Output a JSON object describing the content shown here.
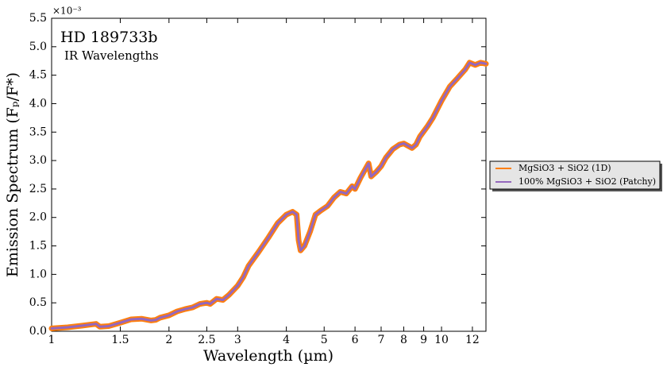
{
  "chart_data": {
    "type": "line",
    "title": "HD 189733b",
    "subtitle": "IR Wavelengths",
    "x_label": "Wavelength (µm)",
    "y_label": "Emission Spectrum (Fₚ/F*)",
    "y_offset_label": "×10⁻³",
    "xscale": "log",
    "xlim": [
      1,
      13
    ],
    "xticks": [
      1,
      1.5,
      2,
      2.5,
      3,
      4,
      5,
      6,
      7,
      8,
      9,
      10,
      12
    ],
    "ylim": [
      0,
      5.5
    ],
    "yticks": [
      {
        "value": 0,
        "label": "0.0"
      },
      0.5,
      {
        "value": 1,
        "label": "1.0"
      },
      1.5,
      {
        "value": 2,
        "label": "2.0"
      },
      2.5,
      {
        "value": 3,
        "label": "3.0"
      },
      3.5,
      {
        "value": 4,
        "label": "4.0"
      },
      4.5,
      {
        "value": 5,
        "label": "5.0"
      },
      5.5
    ],
    "legend": "outside right",
    "x": [
      1.0,
      1.1,
      1.2,
      1.3,
      1.33,
      1.4,
      1.5,
      1.6,
      1.7,
      1.8,
      1.85,
      1.9,
      2.0,
      2.1,
      2.2,
      2.3,
      2.4,
      2.5,
      2.55,
      2.65,
      2.75,
      2.85,
      3.0,
      3.1,
      3.2,
      3.4,
      3.6,
      3.8,
      4.0,
      4.15,
      4.25,
      4.3,
      4.35,
      4.45,
      4.6,
      4.75,
      4.9,
      5.1,
      5.3,
      5.5,
      5.7,
      5.9,
      6.0,
      6.2,
      6.5,
      6.6,
      6.8,
      7.0,
      7.2,
      7.5,
      7.8,
      8.0,
      8.4,
      8.6,
      8.8,
      9.2,
      9.5,
      10.0,
      10.5,
      11.0,
      11.5,
      11.8,
      12.2,
      12.6,
      13.0
    ],
    "series": [
      {
        "name": "MgSiO3 + SiO2 (1D)",
        "color": "#ff7f0e",
        "values": [
          0.05,
          0.07,
          0.1,
          0.13,
          0.08,
          0.09,
          0.15,
          0.21,
          0.22,
          0.19,
          0.2,
          0.24,
          0.28,
          0.35,
          0.39,
          0.42,
          0.48,
          0.5,
          0.48,
          0.57,
          0.55,
          0.64,
          0.8,
          0.95,
          1.15,
          1.4,
          1.65,
          1.9,
          2.05,
          2.1,
          2.05,
          1.6,
          1.42,
          1.5,
          1.75,
          2.05,
          2.12,
          2.2,
          2.35,
          2.45,
          2.42,
          2.55,
          2.5,
          2.7,
          2.95,
          2.72,
          2.8,
          2.9,
          3.05,
          3.2,
          3.28,
          3.3,
          3.22,
          3.28,
          3.42,
          3.6,
          3.75,
          4.05,
          4.3,
          4.45,
          4.6,
          4.72,
          4.68,
          4.72,
          4.7
        ]
      },
      {
        "name": "100% MgSiO3 + SiO2 (Patchy)",
        "color": "#9467bd",
        "values": [
          0.05,
          0.07,
          0.1,
          0.13,
          0.08,
          0.09,
          0.15,
          0.21,
          0.22,
          0.19,
          0.2,
          0.24,
          0.28,
          0.35,
          0.39,
          0.42,
          0.48,
          0.5,
          0.48,
          0.57,
          0.55,
          0.64,
          0.8,
          0.95,
          1.15,
          1.4,
          1.65,
          1.9,
          2.05,
          2.1,
          2.05,
          1.6,
          1.42,
          1.5,
          1.75,
          2.05,
          2.12,
          2.2,
          2.35,
          2.45,
          2.42,
          2.55,
          2.5,
          2.7,
          2.95,
          2.72,
          2.8,
          2.9,
          3.05,
          3.2,
          3.28,
          3.3,
          3.22,
          3.28,
          3.42,
          3.6,
          3.75,
          4.05,
          4.3,
          4.45,
          4.6,
          4.72,
          4.68,
          4.72,
          4.7
        ]
      }
    ]
  }
}
